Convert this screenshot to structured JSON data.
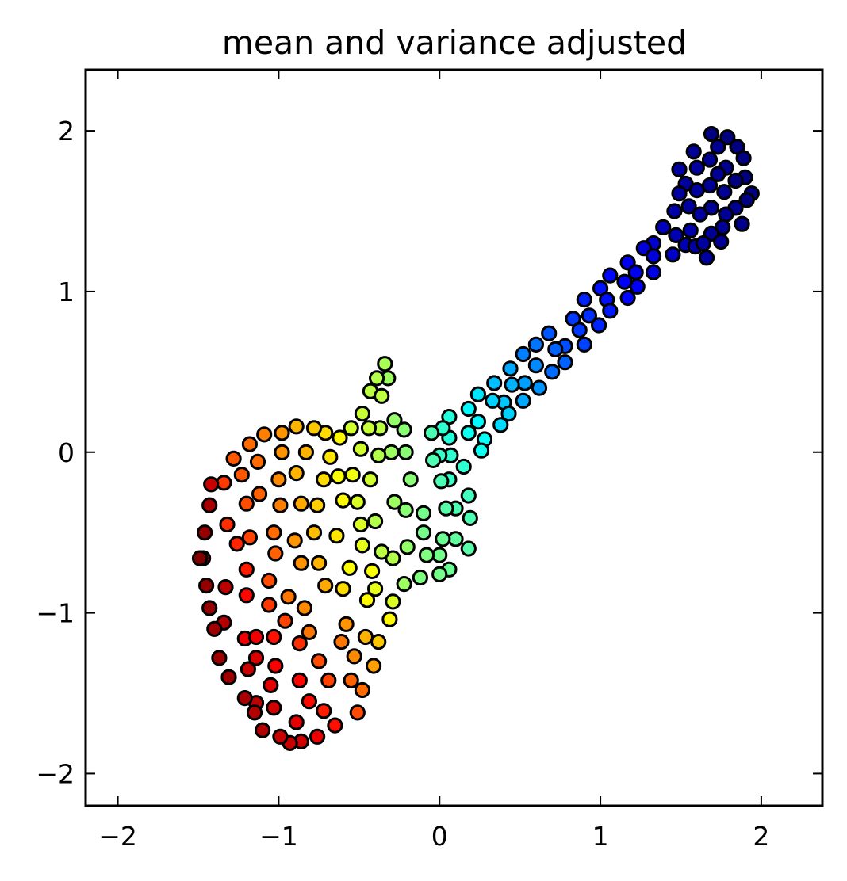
{
  "chart_data": {
    "type": "scatter",
    "title": "mean and variance adjusted",
    "xlabel": "",
    "ylabel": "",
    "xlim": [
      -2.2,
      2.38
    ],
    "ylim": [
      -2.2,
      2.38
    ],
    "xticks": [
      -2,
      -1,
      0,
      1,
      2
    ],
    "yticks": [
      -2,
      -1,
      0,
      1,
      2
    ],
    "xtick_labels": [
      "−2",
      "−1",
      "0",
      "1",
      "2"
    ],
    "ytick_labels": [
      "−2",
      "−1",
      "0",
      "1",
      "2"
    ],
    "grid": false,
    "legend": "none",
    "marker_edge_color": "#000000",
    "colormap": "jet (color by position along shape)",
    "points": [
      [
        1.69,
        1.98,
        0.0
      ],
      [
        1.79,
        1.96,
        0.0
      ],
      [
        1.85,
        1.9,
        0.0
      ],
      [
        1.89,
        1.83,
        0.0
      ],
      [
        1.73,
        1.9,
        0.02
      ],
      [
        1.58,
        1.87,
        0.02
      ],
      [
        1.68,
        1.82,
        0.02
      ],
      [
        1.78,
        1.77,
        0.02
      ],
      [
        1.6,
        1.77,
        0.03
      ],
      [
        1.49,
        1.76,
        0.03
      ],
      [
        1.73,
        1.73,
        0.02
      ],
      [
        1.9,
        1.71,
        0.0
      ],
      [
        1.84,
        1.69,
        0.0
      ],
      [
        1.68,
        1.66,
        0.02
      ],
      [
        1.53,
        1.67,
        0.03
      ],
      [
        1.6,
        1.63,
        0.03
      ],
      [
        1.77,
        1.62,
        0.02
      ],
      [
        1.94,
        1.61,
        0.0
      ],
      [
        1.91,
        1.57,
        0.0
      ],
      [
        1.84,
        1.52,
        0.02
      ],
      [
        1.69,
        1.52,
        0.02
      ],
      [
        1.55,
        1.53,
        0.03
      ],
      [
        1.49,
        1.61,
        0.03
      ],
      [
        1.46,
        1.5,
        0.04
      ],
      [
        1.62,
        1.48,
        0.03
      ],
      [
        1.78,
        1.48,
        0.02
      ],
      [
        1.76,
        1.4,
        0.02
      ],
      [
        1.69,
        1.36,
        0.02
      ],
      [
        1.56,
        1.38,
        0.04
      ],
      [
        1.47,
        1.35,
        0.05
      ],
      [
        1.53,
        1.29,
        0.05
      ],
      [
        1.59,
        1.28,
        0.04
      ],
      [
        1.64,
        1.3,
        0.03
      ],
      [
        1.75,
        1.31,
        0.02
      ],
      [
        1.88,
        1.42,
        0.01
      ],
      [
        1.66,
        1.21,
        0.03
      ],
      [
        1.39,
        1.4,
        0.06
      ],
      [
        1.45,
        1.23,
        0.07
      ],
      [
        1.33,
        1.3,
        0.08
      ],
      [
        1.27,
        1.27,
        0.09
      ],
      [
        1.33,
        1.22,
        0.09
      ],
      [
        1.33,
        1.12,
        0.1
      ],
      [
        1.17,
        1.18,
        0.11
      ],
      [
        1.22,
        1.12,
        0.11
      ],
      [
        1.15,
        1.06,
        0.12
      ],
      [
        1.23,
        1.03,
        0.12
      ],
      [
        1.17,
        0.96,
        0.13
      ],
      [
        1.06,
        1.1,
        0.13
      ],
      [
        1.0,
        1.02,
        0.14
      ],
      [
        1.04,
        0.95,
        0.14
      ],
      [
        1.06,
        0.88,
        0.15
      ],
      [
        0.99,
        0.79,
        0.16
      ],
      [
        0.9,
        0.95,
        0.16
      ],
      [
        0.93,
        0.85,
        0.17
      ],
      [
        0.83,
        0.83,
        0.18
      ],
      [
        0.87,
        0.76,
        0.18
      ],
      [
        0.78,
        0.66,
        0.2
      ],
      [
        0.9,
        0.67,
        0.19
      ],
      [
        0.68,
        0.74,
        0.21
      ],
      [
        0.72,
        0.64,
        0.22
      ],
      [
        0.78,
        0.56,
        0.22
      ],
      [
        0.7,
        0.5,
        0.23
      ],
      [
        0.6,
        0.67,
        0.24
      ],
      [
        0.52,
        0.61,
        0.25
      ],
      [
        0.6,
        0.54,
        0.26
      ],
      [
        0.62,
        0.4,
        0.27
      ],
      [
        0.52,
        0.32,
        0.29
      ],
      [
        0.53,
        0.43,
        0.28
      ],
      [
        0.44,
        0.52,
        0.29
      ],
      [
        0.45,
        0.42,
        0.3
      ],
      [
        0.34,
        0.43,
        0.31
      ],
      [
        0.4,
        0.31,
        0.32
      ],
      [
        0.43,
        0.24,
        0.33
      ],
      [
        0.38,
        0.17,
        0.34
      ],
      [
        0.33,
        0.32,
        0.33
      ],
      [
        0.24,
        0.36,
        0.35
      ],
      [
        0.18,
        0.27,
        0.37
      ],
      [
        0.24,
        0.19,
        0.37
      ],
      [
        0.28,
        0.08,
        0.38
      ],
      [
        0.26,
        0.01,
        0.39
      ],
      [
        0.18,
        0.12,
        0.39
      ],
      [
        0.06,
        0.22,
        0.41
      ],
      [
        0.06,
        0.09,
        0.41
      ],
      [
        0.02,
        0.15,
        0.42
      ],
      [
        0.15,
        -0.09,
        0.42
      ],
      [
        0.07,
        -0.02,
        0.42
      ],
      [
        0.0,
        -0.02,
        0.43
      ],
      [
        0.06,
        -0.17,
        0.43
      ],
      [
        -0.05,
        0.12,
        0.45
      ],
      [
        -0.04,
        -0.05,
        0.45
      ],
      [
        0.18,
        -0.27,
        0.44
      ],
      [
        0.01,
        -0.18,
        0.45
      ],
      [
        0.19,
        -0.41,
        0.45
      ],
      [
        0.1,
        -0.35,
        0.45
      ],
      [
        0.04,
        -0.35,
        0.46
      ],
      [
        -0.1,
        -0.38,
        0.49
      ],
      [
        0.18,
        -0.6,
        0.46
      ],
      [
        0.1,
        -0.54,
        0.47
      ],
      [
        0.02,
        -0.54,
        0.48
      ],
      [
        0.06,
        -0.73,
        0.48
      ],
      [
        0.0,
        -0.76,
        0.49
      ],
      [
        0.0,
        -0.64,
        0.49
      ],
      [
        -0.1,
        -0.5,
        0.49
      ],
      [
        -0.08,
        -0.64,
        0.5
      ],
      [
        -0.12,
        -0.78,
        0.5
      ],
      [
        -0.22,
        -0.82,
        0.53
      ],
      [
        -0.2,
        -0.59,
        0.52
      ],
      [
        -0.21,
        -0.36,
        0.51
      ],
      [
        -0.18,
        -0.17,
        0.51
      ],
      [
        -0.21,
        0.0,
        0.51
      ],
      [
        -0.22,
        0.14,
        0.51
      ],
      [
        -0.28,
        0.2,
        0.52
      ],
      [
        -0.3,
        0.0,
        0.53
      ],
      [
        -0.28,
        -0.31,
        0.53
      ],
      [
        -0.29,
        -0.66,
        0.55
      ],
      [
        -0.36,
        -0.62,
        0.56
      ],
      [
        -0.4,
        -0.43,
        0.55
      ],
      [
        -0.38,
        -0.02,
        0.55
      ],
      [
        -0.32,
        0.46,
        0.53
      ],
      [
        -0.34,
        0.55,
        0.54
      ],
      [
        -0.39,
        0.46,
        0.55
      ],
      [
        -0.43,
        0.38,
        0.56
      ],
      [
        -0.36,
        0.35,
        0.56
      ],
      [
        -0.37,
        0.15,
        0.56
      ],
      [
        -0.44,
        0.15,
        0.57
      ],
      [
        -0.48,
        0.24,
        0.57
      ],
      [
        -0.55,
        0.15,
        0.58
      ],
      [
        -0.49,
        0.02,
        0.58
      ],
      [
        -0.43,
        -0.17,
        0.58
      ],
      [
        -0.51,
        -0.31,
        0.59
      ],
      [
        -0.49,
        -0.45,
        0.59
      ],
      [
        -0.48,
        -0.58,
        0.6
      ],
      [
        -0.42,
        -0.74,
        0.62
      ],
      [
        -0.45,
        -0.92,
        0.63
      ],
      [
        -0.29,
        -0.93,
        0.59
      ],
      [
        -0.31,
        -1.04,
        0.63
      ],
      [
        -0.6,
        -0.85,
        0.66
      ],
      [
        -0.6,
        -0.3,
        0.63
      ],
      [
        -0.54,
        -0.14,
        0.61
      ],
      [
        -0.63,
        -0.15,
        0.62
      ],
      [
        -0.62,
        0.09,
        0.63
      ],
      [
        -0.68,
        -0.03,
        0.65
      ],
      [
        -0.72,
        -0.17,
        0.66
      ],
      [
        -0.71,
        0.12,
        0.66
      ],
      [
        -0.76,
        -0.33,
        0.67
      ],
      [
        -0.64,
        -0.52,
        0.65
      ],
      [
        -0.78,
        0.15,
        0.68
      ],
      [
        -0.89,
        0.16,
        0.7
      ],
      [
        -0.83,
        0.0,
        0.7
      ],
      [
        -0.86,
        -0.32,
        0.71
      ],
      [
        -0.89,
        -0.13,
        0.7
      ],
      [
        -0.78,
        -0.5,
        0.69
      ],
      [
        -0.75,
        -0.69,
        0.7
      ],
      [
        -0.71,
        -0.83,
        0.71
      ],
      [
        -0.86,
        -0.69,
        0.73
      ],
      [
        -0.9,
        -0.55,
        0.73
      ],
      [
        -0.94,
        -0.9,
        0.76
      ],
      [
        -0.84,
        -0.97,
        0.74
      ],
      [
        -0.81,
        -1.12,
        0.76
      ],
      [
        -0.98,
        0.12,
        0.73
      ],
      [
        -0.98,
        0.0,
        0.73
      ],
      [
        -1.0,
        -0.17,
        0.74
      ],
      [
        -0.99,
        -0.33,
        0.75
      ],
      [
        -1.03,
        -0.5,
        0.77
      ],
      [
        -1.02,
        -0.63,
        0.78
      ],
      [
        -1.06,
        -0.8,
        0.8
      ],
      [
        -1.09,
        0.11,
        0.75
      ],
      [
        -1.13,
        -0.06,
        0.77
      ],
      [
        -1.12,
        -0.26,
        0.78
      ],
      [
        -1.18,
        0.05,
        0.77
      ],
      [
        -1.23,
        -0.14,
        0.79
      ],
      [
        -1.2,
        -0.32,
        0.8
      ],
      [
        -1.18,
        -0.53,
        0.81
      ],
      [
        -1.28,
        -0.04,
        0.79
      ],
      [
        -1.32,
        -0.45,
        0.83
      ],
      [
        -1.34,
        -0.19,
        0.82
      ],
      [
        -1.26,
        -0.57,
        0.84
      ],
      [
        -1.2,
        -0.73,
        0.85
      ],
      [
        -1.2,
        -0.89,
        0.87
      ],
      [
        -1.06,
        -0.95,
        0.82
      ],
      [
        -0.96,
        -1.05,
        0.81
      ],
      [
        -0.87,
        -1.19,
        0.83
      ],
      [
        -0.75,
        -1.3,
        0.8
      ],
      [
        -0.69,
        -1.42,
        0.81
      ],
      [
        -0.61,
        -1.18,
        0.76
      ],
      [
        -0.58,
        -1.07,
        0.73
      ],
      [
        -0.53,
        -1.27,
        0.74
      ],
      [
        -0.55,
        -1.42,
        0.78
      ],
      [
        -0.48,
        -1.48,
        0.77
      ],
      [
        -0.51,
        -1.62,
        0.8
      ],
      [
        -0.65,
        -1.7,
        0.86
      ],
      [
        -0.72,
        -1.61,
        0.85
      ],
      [
        -0.76,
        -1.77,
        0.89
      ],
      [
        -0.81,
        -1.55,
        0.87
      ],
      [
        -0.87,
        -1.42,
        0.87
      ],
      [
        -0.89,
        -1.68,
        0.9
      ],
      [
        -0.86,
        -1.8,
        0.92
      ],
      [
        -0.93,
        -1.81,
        0.93
      ],
      [
        -0.99,
        -1.77,
        0.93
      ],
      [
        -1.03,
        -1.59,
        0.92
      ],
      [
        -1.05,
        -1.45,
        0.9
      ],
      [
        -1.02,
        -1.33,
        0.88
      ],
      [
        -1.03,
        -1.15,
        0.86
      ],
      [
        -1.14,
        -1.28,
        0.91
      ],
      [
        -1.21,
        -1.16,
        0.89
      ],
      [
        -1.14,
        -1.15,
        0.89
      ],
      [
        -1.1,
        -1.73,
        0.95
      ],
      [
        -1.14,
        -1.56,
        0.94
      ],
      [
        -1.15,
        -1.62,
        0.95
      ],
      [
        -1.19,
        -1.35,
        0.93
      ],
      [
        -1.21,
        -1.53,
        0.96
      ],
      [
        -1.31,
        -1.4,
        0.97
      ],
      [
        -1.34,
        -1.06,
        0.95
      ],
      [
        -1.37,
        -1.28,
        0.97
      ],
      [
        -1.4,
        -1.1,
        0.97
      ],
      [
        -1.43,
        -0.97,
        0.98
      ],
      [
        -1.45,
        -0.83,
        0.98
      ],
      [
        -1.47,
        -0.66,
        0.99
      ],
      [
        -1.49,
        -0.66,
        1.0
      ],
      [
        -1.46,
        -0.5,
        0.98
      ],
      [
        -1.43,
        -0.33,
        0.96
      ],
      [
        -1.42,
        -0.2,
        0.93
      ],
      [
        -1.33,
        -0.84,
        0.94
      ],
      [
        -0.46,
        -1.15,
        0.7
      ],
      [
        -0.41,
        -1.33,
        0.72
      ],
      [
        -0.38,
        -1.18,
        0.68
      ],
      [
        -0.56,
        -0.72,
        0.62
      ],
      [
        -0.4,
        -0.85,
        0.6
      ]
    ]
  }
}
